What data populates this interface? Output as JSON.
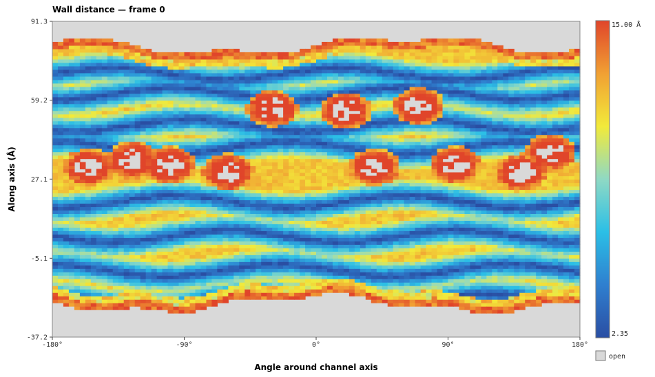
{
  "chart_data": {
    "type": "heatmap",
    "title": "Wall distance — frame 0",
    "xlabel": "Angle around channel axis",
    "ylabel": "Along axis (Å)",
    "x_range": [
      -180,
      180
    ],
    "y_range": [
      -37.2,
      91.3
    ],
    "x_ticks": [
      "-180°",
      "-90°",
      "0°",
      "90°",
      "180°"
    ],
    "x_tick_values": [
      -180,
      -90,
      0,
      90,
      180
    ],
    "y_ticks": [
      "91.3",
      "59.2",
      "27.1",
      "-5.1",
      "-37.2"
    ],
    "y_tick_values": [
      91.3,
      59.2,
      27.1,
      -5.1,
      -37.2
    ],
    "colorbar": {
      "min": 2.35,
      "max": 15.0,
      "min_label": "2.35",
      "max_label": "15.00 Å",
      "colors": [
        "#2a4ea3",
        "#2f7fcf",
        "#2bbfe6",
        "#8fd9c4",
        "#f2ea3a",
        "#f1a033",
        "#e0452a"
      ]
    },
    "legend": {
      "open_label": "open",
      "open_color": "#d9d9d9"
    },
    "data_extent": {
      "y_top_min": 77,
      "y_top_max": 86,
      "y_bottom_min": -28,
      "y_bottom_max": -19
    },
    "band_centers_y": [
      70,
      62,
      49,
      40,
      18,
      4,
      -10,
      -22
    ],
    "open_pockets": [
      {
        "x": -155,
        "y": 32
      },
      {
        "x": -100,
        "y": 33
      },
      {
        "x": -60,
        "y": 30
      },
      {
        "x": 40,
        "y": 32
      },
      {
        "x": 95,
        "y": 33
      },
      {
        "x": 140,
        "y": 30
      },
      {
        "x": -125,
        "y": 35
      },
      {
        "x": 160,
        "y": 38
      },
      {
        "x": 20,
        "y": 55
      },
      {
        "x": -30,
        "y": 56
      },
      {
        "x": 70,
        "y": 57
      }
    ]
  }
}
